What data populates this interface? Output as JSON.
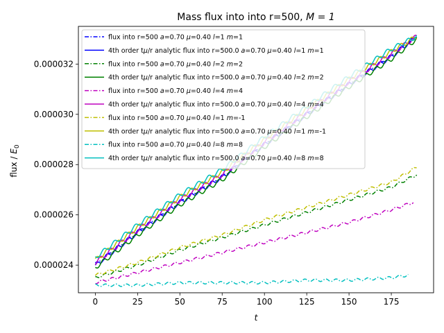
{
  "chart_data": {
    "type": "line",
    "title": "Mass flux into into r=500, $M=1$",
    "title_plain": "Mass flux into into r=500, ",
    "title_math": "M = 1",
    "xlabel": "t",
    "ylabel": "flux / E_0",
    "xlim": [
      -10,
      200
    ],
    "ylim": [
      2.29e-05,
      3.35e-05
    ],
    "xticks": [
      0,
      25,
      50,
      75,
      100,
      125,
      150,
      175
    ],
    "yticks": [
      2.4e-05,
      2.6e-05,
      2.8e-05,
      3e-05,
      3.2e-05
    ],
    "ytick_labels": [
      "0.000024",
      "0.000026",
      "0.000028",
      "0.000030",
      "0.000032"
    ],
    "grid": false,
    "legend_position": "upper-left",
    "series": [
      {
        "name": "flux into r=500 $a$=0.70 $\\mu$=0.40 $l$=1 $m$=1",
        "color": "#0000ff",
        "style": "dashdot",
        "x": [
          0,
          25,
          50,
          75,
          100,
          125,
          150,
          175,
          190
        ],
        "y": [
          2.4e-05,
          2.53e-05,
          2.65e-05,
          2.75e-05,
          2.88e-05,
          3e-05,
          3.12e-05,
          3.23e-05,
          3.31e-05
        ]
      },
      {
        "name": "4th order t$\\mu$/r analytic flux into r=500.0 $a$=0.70 $\\mu$=0.40 $l$=1 $m$=1",
        "color": "#0000ff",
        "style": "solid",
        "x": [
          0,
          25,
          50,
          75,
          100,
          125,
          150,
          175,
          190
        ],
        "y": [
          2.4e-05,
          2.53e-05,
          2.65e-05,
          2.75e-05,
          2.88e-05,
          3e-05,
          3.12e-05,
          3.23e-05,
          3.31e-05
        ]
      },
      {
        "name": "flux into r=500 $a$=0.70 $\\mu$=0.40 $l$=2 $m$=2",
        "color": "#008000",
        "style": "dashdot",
        "x": [
          0,
          25,
          50,
          75,
          100,
          125,
          150,
          175,
          190
        ],
        "y": [
          2.35e-05,
          2.4e-05,
          2.46e-05,
          2.51e-05,
          2.56e-05,
          2.61e-05,
          2.66e-05,
          2.71e-05,
          2.76e-05
        ]
      },
      {
        "name": "4th order t$\\mu$/r analytic flux into r=500.0 $a$=0.70 $\\mu$=0.40 $l$=2 $m$=2",
        "color": "#008000",
        "style": "solid",
        "x": [
          0,
          25,
          50,
          75,
          100,
          125,
          150,
          175,
          190
        ],
        "y": [
          2.39e-05,
          2.52e-05,
          2.64e-05,
          2.74e-05,
          2.87e-05,
          2.99e-05,
          3.11e-05,
          3.22e-05,
          3.3e-05
        ]
      },
      {
        "name": "flux into r=500 $a$=0.70 $\\mu$=0.40 $l$=4 $m$=4",
        "color": "#bf00bf",
        "style": "dashdot",
        "x": [
          0,
          25,
          50,
          75,
          100,
          125,
          150,
          175,
          188
        ],
        "y": [
          2.33e-05,
          2.37e-05,
          2.41e-05,
          2.45e-05,
          2.49e-05,
          2.53e-05,
          2.57e-05,
          2.62e-05,
          2.65e-05
        ]
      },
      {
        "name": "4th order t$\\mu$/r analytic flux into r=500.0 $a$=0.70 $\\mu$=0.40 $l$=4 $m$=4",
        "color": "#bf00bf",
        "style": "solid",
        "x": [
          0,
          25,
          50,
          75,
          100,
          125,
          150,
          175,
          190
        ],
        "y": [
          2.41e-05,
          2.54e-05,
          2.66e-05,
          2.76e-05,
          2.89e-05,
          3.01e-05,
          3.13e-05,
          3.24e-05,
          3.31e-05
        ]
      },
      {
        "name": "flux into r=500 $a$=0.70 $\\mu$=0.40 $l$=1 $m$=-1",
        "color": "#bfbf00",
        "style": "dashdot",
        "x": [
          0,
          25,
          50,
          75,
          100,
          125,
          150,
          175,
          190
        ],
        "y": [
          2.36e-05,
          2.41e-05,
          2.47e-05,
          2.52e-05,
          2.58e-05,
          2.63e-05,
          2.68e-05,
          2.73e-05,
          2.79e-05
        ]
      },
      {
        "name": "4th order t$\\mu$/r analytic flux into r=500.0 $a$=0.70 $\\mu$=0.40 $l$=1 $m$=-1",
        "color": "#bfbf00",
        "style": "solid",
        "x": [
          0,
          25,
          50,
          75,
          100,
          125,
          150,
          175,
          190
        ],
        "y": [
          2.42e-05,
          2.55e-05,
          2.67e-05,
          2.77e-05,
          2.9e-05,
          3.02e-05,
          3.14e-05,
          3.25e-05,
          3.31e-05
        ]
      },
      {
        "name": "flux into r=500 $a$=0.70 $\\mu$=0.40 $l$=8 $m$=8",
        "color": "#00bfbf",
        "style": "dashdot",
        "x": [
          0,
          25,
          50,
          75,
          100,
          125,
          150,
          175,
          185
        ],
        "y": [
          2.32e-05,
          2.32e-05,
          2.33e-05,
          2.33e-05,
          2.33e-05,
          2.34e-05,
          2.34e-05,
          2.35e-05,
          2.36e-05
        ]
      },
      {
        "name": "4th order t$\\mu$/r analytic flux into r=500.0 $a$=0.70 $\\mu$=0.40 $l$=8 $m$=8",
        "color": "#00bfbf",
        "style": "solid",
        "x": [
          0,
          25,
          50,
          75,
          100,
          125,
          150,
          175,
          190
        ],
        "y": [
          2.43e-05,
          2.56e-05,
          2.68e-05,
          2.78e-05,
          2.91e-05,
          3.03e-05,
          3.15e-05,
          3.26e-05,
          3.31e-05
        ]
      }
    ]
  }
}
